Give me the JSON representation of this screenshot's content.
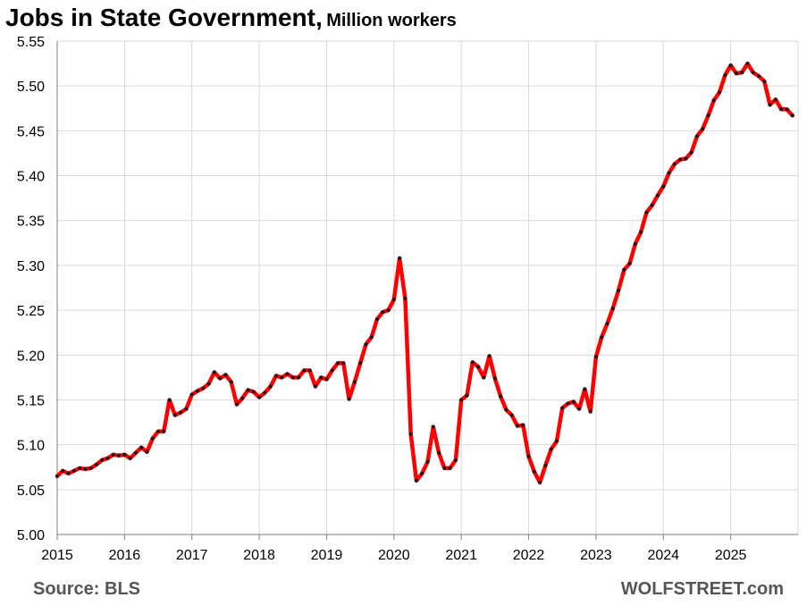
{
  "title": "Jobs in State Government,",
  "subtitle": "Million workers",
  "source": "Source: BLS",
  "brand": "WOLFSTREET.com",
  "colors": {
    "line": "#ff0000",
    "marker": "#1a1a1a",
    "grid": "#d9d9d9"
  },
  "chart_data": {
    "type": "line",
    "title": "Jobs in State Government,",
    "subtitle": "Million workers",
    "xlabel": "",
    "ylabel": "",
    "ylim": [
      5.0,
      5.55
    ],
    "xlim": [
      2015,
      2026
    ],
    "grid": true,
    "legend": "none",
    "x_ticks": [
      "2015",
      "2016",
      "2017",
      "2018",
      "2019",
      "2020",
      "2021",
      "2022",
      "2023",
      "2024",
      "2025"
    ],
    "y_ticks": [
      "5.00",
      "5.05",
      "5.10",
      "5.15",
      "5.20",
      "5.25",
      "5.30",
      "5.35",
      "5.40",
      "5.45",
      "5.50",
      "5.55"
    ],
    "series": [
      {
        "x_start": "2015-01",
        "frequency": "monthly",
        "values": [
          5.065,
          5.071,
          5.068,
          5.071,
          5.074,
          5.073,
          5.074,
          5.078,
          5.083,
          5.085,
          5.089,
          5.088,
          5.089,
          5.085,
          5.091,
          5.097,
          5.092,
          5.107,
          5.115,
          5.115,
          5.15,
          5.133,
          5.136,
          5.14,
          5.156,
          5.16,
          5.163,
          5.168,
          5.181,
          5.174,
          5.178,
          5.17,
          5.145,
          5.152,
          5.161,
          5.159,
          5.153,
          5.158,
          5.165,
          5.177,
          5.175,
          5.179,
          5.175,
          5.175,
          5.183,
          5.183,
          5.165,
          5.175,
          5.173,
          5.183,
          5.191,
          5.191,
          5.151,
          5.17,
          5.191,
          5.212,
          5.22,
          5.24,
          5.248,
          5.25,
          5.262,
          5.308,
          5.263,
          5.112,
          5.06,
          5.068,
          5.081,
          5.12,
          5.091,
          5.074,
          5.074,
          5.083,
          5.15,
          5.155,
          5.192,
          5.187,
          5.175,
          5.199,
          5.174,
          5.154,
          5.139,
          5.133,
          5.121,
          5.122,
          5.087,
          5.07,
          5.058,
          5.077,
          5.095,
          5.104,
          5.141,
          5.146,
          5.148,
          5.14,
          5.162,
          5.137,
          5.198,
          5.22,
          5.235,
          5.252,
          5.272,
          5.295,
          5.302,
          5.324,
          5.337,
          5.359,
          5.367,
          5.378,
          5.388,
          5.403,
          5.413,
          5.418,
          5.419,
          5.426,
          5.444,
          5.452,
          5.467,
          5.484,
          5.493,
          5.512,
          5.523,
          5.514,
          5.515,
          5.525,
          5.515,
          5.511,
          5.505,
          5.479,
          5.485,
          5.474,
          5.474,
          5.467
        ]
      }
    ]
  }
}
